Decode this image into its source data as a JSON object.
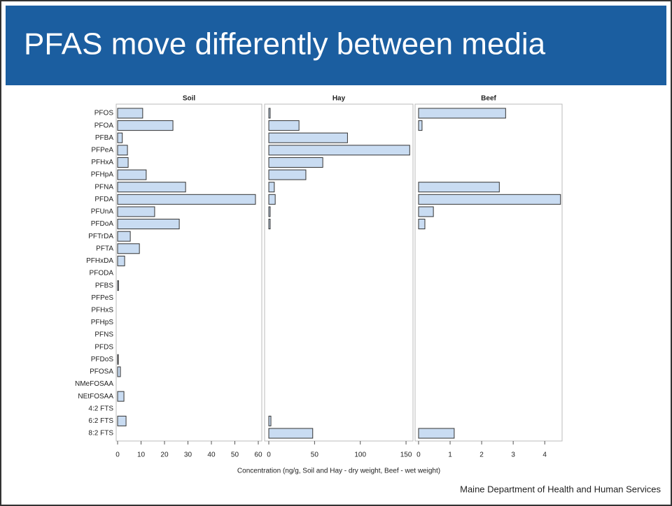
{
  "slide_title": "PFAS move differently between media",
  "footer": "Maine Department of Health and Human Services",
  "chart_data": [
    {
      "type": "bar",
      "orientation": "horizontal",
      "title": "Soil",
      "categories": [
        "PFOS",
        "PFOA",
        "PFBA",
        "PFPeA",
        "PFHxA",
        "PFHpA",
        "PFNA",
        "PFDA",
        "PFUnA",
        "PFDoA",
        "PFTrDA",
        "PFTA",
        "PFHxDA",
        "PFODA",
        "PFBS",
        "PFPeS",
        "PFHxS",
        "PFHpS",
        "PFNS",
        "PFDS",
        "PFDoS",
        "PFOSA",
        "NMeFOSAA",
        "NEtFOSAA",
        "4:2 FTS",
        "6:2 FTS",
        "8:2 FTS"
      ],
      "values": [
        10.7,
        23.6,
        2,
        4.2,
        4.5,
        12.2,
        29,
        58.8,
        15.8,
        26.3,
        5.4,
        9.3,
        3,
        0,
        0.4,
        0,
        0,
        0,
        0,
        0,
        0.3,
        1.2,
        0,
        2.7,
        0,
        3.6,
        0
      ],
      "color": "#c9dcf2",
      "xlim": [
        -0.6,
        61.5
      ],
      "xticks": [
        0,
        10,
        20,
        30,
        40,
        50,
        60
      ]
    },
    {
      "type": "bar",
      "orientation": "horizontal",
      "title": "Hay",
      "xlabel": "Concentration (ng/g, Soil and Hay - dry weight, Beef - wet weight)",
      "values": [
        1.5,
        33,
        86,
        154,
        59,
        40.5,
        6,
        7,
        1.5,
        1.5,
        0,
        0,
        0,
        0,
        0,
        0,
        0,
        0,
        0,
        0,
        0,
        0,
        0,
        0,
        0,
        2.3,
        48
      ],
      "color": "#c9dcf2",
      "xlim": [
        -4.6,
        157.6
      ],
      "xticks": [
        0,
        50,
        100,
        150
      ]
    },
    {
      "type": "bar",
      "orientation": "horizontal",
      "title": "Beef",
      "values": [
        2.76,
        0.11,
        0,
        0,
        0,
        0,
        2.56,
        4.5,
        0.47,
        0.2,
        0,
        0,
        0,
        0,
        0,
        0,
        0,
        0,
        0,
        0,
        0,
        0,
        0,
        0,
        0,
        0,
        1.13
      ],
      "color": "#c9dcf2",
      "xlim": [
        -0.11,
        4.55
      ],
      "xticks": [
        0,
        1,
        2,
        3,
        4
      ]
    }
  ]
}
